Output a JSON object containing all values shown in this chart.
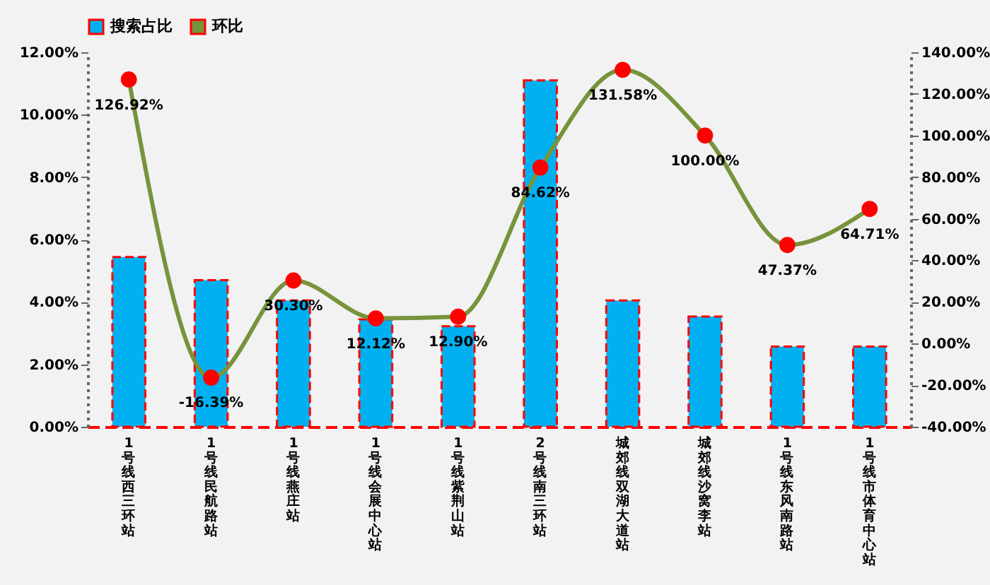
{
  "chart_data": {
    "type": "bar",
    "categories": [
      "1号线西三环站",
      "1号线民航路站",
      "1号线燕庄站",
      "1号线会展中心站",
      "1号线紫荆山站",
      "2号线南三环站",
      "城郊线双湖大道站",
      "城郊线沙窝李站",
      "1号线东风南路站",
      "1号线市体育中心站"
    ],
    "series": [
      {
        "name": "搜索占比",
        "color": "#00b0f0",
        "values": [
          5.44,
          4.7,
          4.05,
          3.44,
          3.22,
          11.1,
          4.05,
          3.53,
          2.57,
          2.57
        ]
      },
      {
        "name": "环比",
        "type": "line",
        "axis": "y2",
        "color": "#77933c",
        "values": [
          126.92,
          -16.39,
          30.3,
          12.12,
          12.9,
          84.62,
          131.58,
          100,
          47.37,
          64.71
        ],
        "value_labels": [
          "126.92%",
          "-16.39%",
          "30.30%",
          "12.12%",
          "12.90%",
          "84.62%",
          "131.58%",
          "100.00%",
          "47.37%",
          "64.71%"
        ]
      }
    ],
    "ylim": [
      0,
      12
    ],
    "yticks": [
      {
        "value": 0,
        "label": "0.00%"
      },
      {
        "value": 2,
        "label": "2.00%"
      },
      {
        "value": 4,
        "label": "4.00%"
      },
      {
        "value": 6,
        "label": "6.00%"
      },
      {
        "value": 8,
        "label": "8.00%"
      },
      {
        "value": 10,
        "label": "10.00%"
      },
      {
        "value": 12,
        "label": "12.00%"
      }
    ],
    "y2lim": [
      -40,
      140
    ],
    "y2ticks": [
      {
        "value": -40,
        "label": "-40.00%"
      },
      {
        "value": -20,
        "label": "-20.00%"
      },
      {
        "value": 0,
        "label": "0.00%"
      },
      {
        "value": 20,
        "label": "20.00%"
      },
      {
        "value": 40,
        "label": "40.00%"
      },
      {
        "value": 60,
        "label": "60.00%"
      },
      {
        "value": 80,
        "label": "80.00%"
      },
      {
        "value": 100,
        "label": "100.00%"
      },
      {
        "value": 120,
        "label": "120.00%"
      },
      {
        "value": 140,
        "label": "140.00%"
      }
    ],
    "grid": false,
    "legend": "top",
    "marker": "circle",
    "line_style": "solid"
  }
}
